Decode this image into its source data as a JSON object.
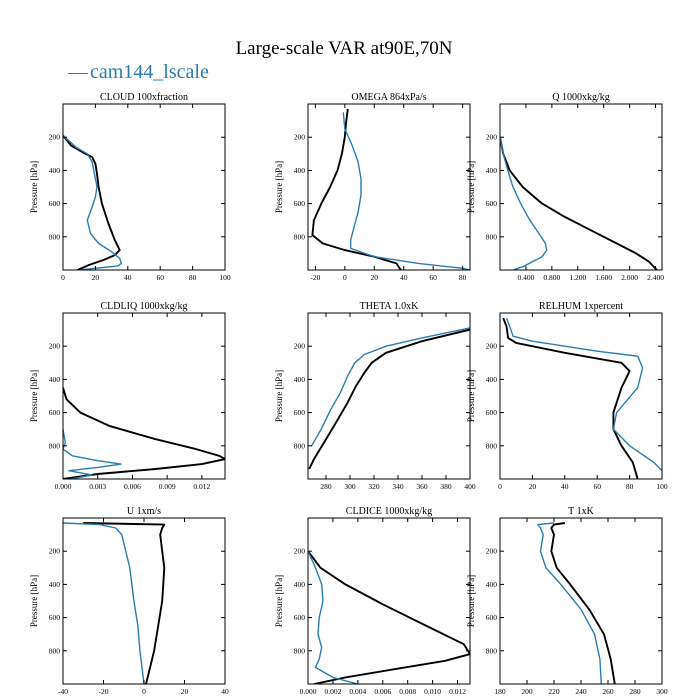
{
  "figure": {
    "title": "Large-scale VAR at90E,70N",
    "legend_dash": "—",
    "legend_label": "cam144_lscale"
  },
  "colors": {
    "series": "#2a7bb0",
    "reference": "#000000",
    "frame": "#000000"
  },
  "chart_data": [
    {
      "type": "line",
      "title": "CLOUD  100xfraction",
      "ylabel": "Pressure [hPa]",
      "xlim": [
        0,
        100
      ],
      "ylim": [
        1000,
        0
      ],
      "xticks": [
        0,
        20,
        40,
        60,
        80,
        100
      ],
      "xticklabels": [
        "0",
        "20",
        "40",
        "60",
        "80",
        "100"
      ],
      "yticks": [
        200,
        400,
        600,
        800
      ],
      "yticklabels": [
        "200",
        "400",
        "600",
        "800"
      ],
      "series": [
        {
          "name": "black",
          "color": "#000000",
          "x": [
            0,
            5,
            12,
            18,
            20,
            21,
            22,
            24,
            28,
            32,
            35,
            32,
            25,
            16,
            9
          ],
          "y": [
            190,
            250,
            290,
            320,
            360,
            420,
            500,
            600,
            720,
            820,
            880,
            910,
            940,
            970,
            1000
          ]
        },
        {
          "name": "cam144_lscale",
          "color": "#2a7bb0",
          "x": [
            0,
            8,
            15,
            18,
            19,
            20,
            21,
            20,
            18,
            15,
            17,
            22,
            30,
            35,
            36,
            34,
            10
          ],
          "y": [
            190,
            260,
            300,
            350,
            400,
            450,
            500,
            560,
            620,
            700,
            780,
            840,
            890,
            930,
            960,
            975,
            1000
          ]
        }
      ]
    },
    {
      "type": "line",
      "title": "OMEGA  864xPa/s",
      "ylabel": "Pressure [hPa]",
      "xlim": [
        -25,
        85
      ],
      "ylim": [
        1000,
        0
      ],
      "xticks": [
        -20,
        0,
        20,
        40,
        60,
        80
      ],
      "xticklabels": [
        "-20",
        "0",
        "20",
        "40",
        "60",
        "80"
      ],
      "yticks": [
        200,
        400,
        600,
        800
      ],
      "yticklabels": [
        "200",
        "400",
        "600",
        "800"
      ],
      "series": [
        {
          "name": "black",
          "color": "#000000",
          "x": [
            2,
            1,
            0,
            -2,
            -5,
            -10,
            -16,
            -21,
            -22,
            -15,
            0,
            20,
            35,
            38
          ],
          "y": [
            30,
            100,
            200,
            300,
            400,
            500,
            600,
            700,
            790,
            840,
            880,
            920,
            960,
            1000
          ]
        },
        {
          "name": "cam144_lscale",
          "color": "#2a7bb0",
          "x": [
            -1,
            0,
            5,
            9,
            11,
            11,
            9,
            6,
            4,
            4,
            20,
            50,
            80,
            85
          ],
          "y": [
            50,
            150,
            250,
            350,
            450,
            550,
            650,
            750,
            820,
            870,
            920,
            960,
            990,
            1000
          ]
        }
      ]
    },
    {
      "type": "line",
      "title": "Q  1000xkg/kg",
      "ylabel": "Pressure [hPa]",
      "xlim": [
        0,
        2.5
      ],
      "ylim": [
        1000,
        0
      ],
      "xticks": [
        0.4,
        0.8,
        1.2,
        1.6,
        2.0,
        2.4
      ],
      "xticklabels": [
        "0.400",
        "0.800",
        "1.200",
        "1.600",
        "2.000",
        "2.400"
      ],
      "yticks": [
        200,
        400,
        600,
        800
      ],
      "yticklabels": [
        "200",
        "400",
        "600",
        "800"
      ],
      "series": [
        {
          "name": "black",
          "color": "#000000",
          "x": [
            0.0,
            0.05,
            0.15,
            0.35,
            0.65,
            1.0,
            1.4,
            1.8,
            2.1,
            2.3,
            2.42
          ],
          "y": [
            200,
            300,
            400,
            500,
            600,
            680,
            760,
            840,
            900,
            950,
            1000
          ]
        },
        {
          "name": "cam144_lscale",
          "color": "#2a7bb0",
          "x": [
            0.0,
            0.05,
            0.12,
            0.2,
            0.32,
            0.46,
            0.6,
            0.7,
            0.72,
            0.65,
            0.5,
            0.35,
            0.2
          ],
          "y": [
            200,
            300,
            400,
            500,
            600,
            700,
            780,
            840,
            880,
            920,
            950,
            980,
            1000
          ]
        }
      ]
    },
    {
      "type": "line",
      "title": "CLDLIQ  1000xkg/kg",
      "ylabel": "Pressure [hPa]",
      "xlim": [
        0,
        0.014
      ],
      "ylim": [
        1000,
        0
      ],
      "xticks": [
        0,
        0.003,
        0.006,
        0.009,
        0.012
      ],
      "xticklabels": [
        "0.000",
        "0.003",
        "0.006",
        "0.009",
        "0.012"
      ],
      "yticks": [
        200,
        400,
        600,
        800
      ],
      "yticklabels": [
        "200",
        "400",
        "600",
        "800"
      ],
      "series": [
        {
          "name": "black",
          "color": "#000000",
          "x": [
            0.0,
            0.0003,
            0.0015,
            0.004,
            0.008,
            0.0115,
            0.0135,
            0.014,
            0.012,
            0.008,
            0.003,
            0.0
          ],
          "y": [
            450,
            520,
            600,
            680,
            760,
            820,
            860,
            880,
            910,
            940,
            970,
            1000
          ]
        },
        {
          "name": "cam144_lscale",
          "color": "#2a7bb0",
          "x": [
            0.0,
            0.0002,
            0.0,
            0.0008,
            0.003,
            0.005,
            0.003,
            0.0005,
            0.0025,
            0.0007
          ],
          "y": [
            700,
            780,
            820,
            860,
            890,
            910,
            930,
            950,
            975,
            1000
          ]
        }
      ]
    },
    {
      "type": "line",
      "title": "THETA  1.0xK",
      "ylabel": "Pressure [hPa]",
      "xlim": [
        265,
        400
      ],
      "ylim": [
        1000,
        0
      ],
      "xticks": [
        280,
        300,
        320,
        340,
        360,
        380,
        400
      ],
      "xticklabels": [
        "280",
        "300",
        "320",
        "340",
        "360",
        "380",
        "400"
      ],
      "yticks": [
        200,
        400,
        600,
        800
      ],
      "yticklabels": [
        "200",
        "400",
        "600",
        "800"
      ],
      "series": [
        {
          "name": "black",
          "color": "#000000",
          "x": [
            400,
            360,
            330,
            318,
            312,
            305,
            298,
            290,
            280,
            270,
            266
          ],
          "y": [
            100,
            170,
            240,
            300,
            360,
            440,
            540,
            640,
            760,
            880,
            940
          ]
        },
        {
          "name": "cam144_lscale",
          "color": "#2a7bb0",
          "x": [
            400,
            360,
            330,
            312,
            304,
            298,
            292,
            284,
            276,
            268
          ],
          "y": [
            90,
            150,
            200,
            250,
            300,
            380,
            480,
            580,
            700,
            800
          ]
        }
      ]
    },
    {
      "type": "line",
      "title": "RELHUM  1xpercent",
      "ylabel": "Pressure [hPa]",
      "xlim": [
        0,
        100
      ],
      "ylim": [
        1000,
        0
      ],
      "xticks": [
        0,
        20,
        40,
        60,
        80,
        100
      ],
      "xticklabels": [
        "0",
        "20",
        "40",
        "60",
        "80",
        "100"
      ],
      "yticks": [
        200,
        400,
        600,
        800
      ],
      "yticklabels": [
        "200",
        "400",
        "600",
        "800"
      ],
      "series": [
        {
          "name": "black",
          "color": "#000000",
          "x": [
            2,
            4,
            5,
            10,
            40,
            75,
            80,
            75,
            70,
            70,
            75,
            82,
            85
          ],
          "y": [
            30,
            80,
            150,
            180,
            240,
            300,
            350,
            450,
            600,
            700,
            800,
            900,
            1000
          ]
        },
        {
          "name": "cam144_lscale",
          "color": "#2a7bb0",
          "x": [
            4,
            6,
            8,
            20,
            60,
            85,
            88,
            85,
            72,
            70,
            80,
            95,
            100
          ],
          "y": [
            30,
            80,
            140,
            170,
            230,
            260,
            330,
            450,
            600,
            700,
            800,
            900,
            950
          ]
        }
      ]
    },
    {
      "type": "line",
      "title": "U  1xm/s",
      "ylabel": "Pressure [hPa]",
      "xlim": [
        -40,
        40
      ],
      "ylim": [
        1000,
        0
      ],
      "xticks": [
        -40,
        -20,
        0,
        20,
        40
      ],
      "xticklabels": [
        "-40",
        "-20",
        "0",
        "20",
        "40"
      ],
      "yticks": [
        200,
        400,
        600,
        800
      ],
      "yticklabels": [
        "200",
        "400",
        "600",
        "800"
      ],
      "series": [
        {
          "name": "black",
          "color": "#000000",
          "x": [
            -30,
            10,
            9,
            8,
            9,
            10,
            9,
            7,
            5,
            3,
            1
          ],
          "y": [
            30,
            40,
            60,
            100,
            200,
            300,
            500,
            650,
            800,
            900,
            1000
          ]
        },
        {
          "name": "cam144_lscale",
          "color": "#2a7bb0",
          "x": [
            -40,
            -22,
            -14,
            -11,
            -9,
            -7,
            -5,
            -3,
            -2,
            -1,
            0
          ],
          "y": [
            30,
            40,
            60,
            100,
            200,
            300,
            500,
            650,
            800,
            900,
            1000
          ]
        }
      ]
    },
    {
      "type": "line",
      "title": "CLDICE  1000xkg/kg",
      "ylabel": "Pressure [hPa]",
      "xlim": [
        0,
        0.013
      ],
      "ylim": [
        1000,
        0
      ],
      "xticks": [
        0,
        0.002,
        0.004,
        0.006,
        0.008,
        0.01,
        0.012
      ],
      "xticklabels": [
        "0.000",
        "0.002",
        "0.004",
        "0.006",
        "0.008",
        "0.010",
        "0.012"
      ],
      "yticks": [
        200,
        400,
        600,
        800
      ],
      "yticklabels": [
        "200",
        "400",
        "600",
        "800"
      ],
      "series": [
        {
          "name": "black",
          "color": "#000000",
          "x": [
            0.0,
            0.001,
            0.003,
            0.006,
            0.0095,
            0.0125,
            0.013,
            0.011,
            0.007,
            0.003,
            0.0005
          ],
          "y": [
            200,
            300,
            400,
            520,
            650,
            760,
            820,
            860,
            910,
            960,
            1000
          ]
        },
        {
          "name": "cam144_lscale",
          "color": "#2a7bb0",
          "x": [
            0.0,
            0.0006,
            0.0011,
            0.0012,
            0.0009,
            0.0008,
            0.0011,
            0.0009,
            0.0006,
            0.002,
            0.004
          ],
          "y": [
            200,
            300,
            400,
            500,
            600,
            700,
            780,
            850,
            900,
            960,
            1000
          ]
        }
      ]
    },
    {
      "type": "line",
      "title": "T  1xK",
      "ylabel": "Pressure [hPa]",
      "xlim": [
        180,
        300
      ],
      "ylim": [
        1000,
        0
      ],
      "xticks": [
        180,
        200,
        220,
        240,
        260,
        280,
        300
      ],
      "xticklabels": [
        "180",
        "200",
        "220",
        "240",
        "260",
        "280",
        "300"
      ],
      "yticks": [
        200,
        400,
        600,
        800
      ],
      "yticklabels": [
        "200",
        "400",
        "600",
        "800"
      ],
      "series": [
        {
          "name": "black",
          "color": "#000000",
          "x": [
            228,
            220,
            218,
            220,
            218,
            222,
            232,
            246,
            257,
            262,
            265
          ],
          "y": [
            30,
            40,
            60,
            100,
            200,
            300,
            400,
            550,
            700,
            850,
            1000
          ]
        },
        {
          "name": "cam144_lscale",
          "color": "#2a7bb0",
          "x": [
            220,
            208,
            210,
            212,
            210,
            214,
            225,
            240,
            250,
            254,
            255
          ],
          "y": [
            30,
            40,
            60,
            100,
            200,
            300,
            400,
            550,
            700,
            850,
            1000
          ]
        }
      ]
    }
  ]
}
